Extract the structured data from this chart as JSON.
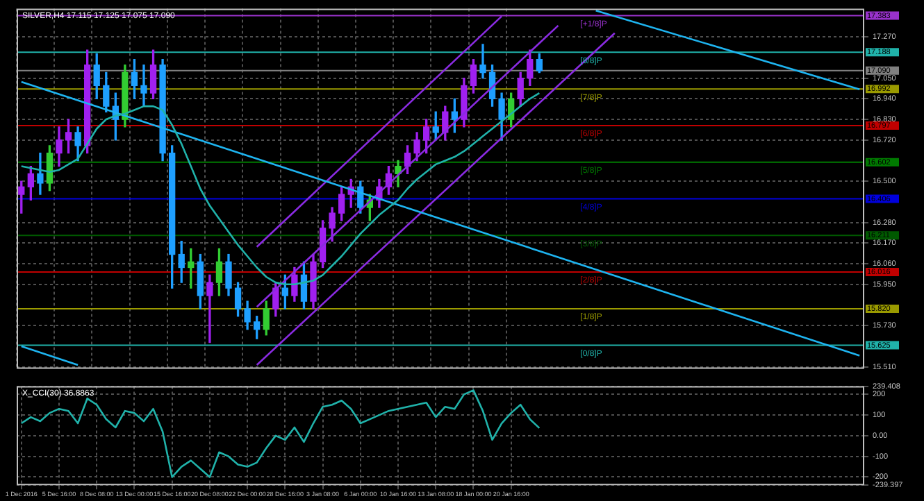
{
  "chart_data": [
    {
      "type": "candlestick",
      "title": "SILVER,H4 17.115 17.125 17.075 17.090",
      "categories": [
        null,
        null,
        null,
        null,
        null,
        null,
        null,
        null,
        null,
        null,
        null,
        null,
        null,
        null,
        null,
        null,
        null,
        null,
        null,
        null,
        null,
        null,
        null,
        null,
        null,
        null,
        null,
        null,
        null,
        null,
        null,
        null,
        null,
        null,
        null,
        null,
        null,
        null,
        null,
        null,
        null,
        null,
        null,
        null,
        null,
        null,
        null,
        null,
        null,
        null,
        null,
        null,
        null,
        null,
        null,
        null,
        null,
        null,
        null,
        null,
        null,
        null,
        null,
        null,
        null,
        null,
        null,
        null,
        null,
        null,
        null,
        null,
        null,
        null,
        null,
        null,
        null,
        null,
        null,
        null,
        null,
        null,
        null,
        null,
        null,
        null,
        null,
        null,
        null,
        null
      ],
      "ohlc": [
        [
          16.43,
          16.5,
          16.33,
          16.47
        ],
        [
          16.47,
          16.58,
          16.4,
          16.54
        ],
        [
          16.54,
          16.65,
          16.43,
          16.49
        ],
        [
          16.49,
          16.69,
          16.45,
          16.65
        ],
        [
          16.65,
          16.79,
          16.58,
          16.72
        ],
        [
          16.72,
          16.83,
          16.65,
          16.76
        ],
        [
          16.76,
          16.79,
          16.61,
          16.69
        ],
        [
          16.69,
          17.2,
          16.65,
          17.12
        ],
        [
          17.12,
          17.18,
          16.94,
          17.01
        ],
        [
          17.01,
          17.08,
          16.87,
          16.9
        ],
        [
          16.9,
          16.97,
          16.72,
          16.83
        ],
        [
          16.83,
          17.12,
          16.79,
          17.08
        ],
        [
          17.08,
          17.15,
          16.94,
          17.01
        ],
        [
          17.01,
          17.12,
          16.9,
          16.97
        ],
        [
          16.97,
          17.2,
          16.94,
          17.12
        ],
        [
          17.12,
          17.15,
          16.61,
          16.65
        ],
        [
          16.65,
          16.69,
          15.93,
          16.11
        ],
        [
          16.11,
          16.18,
          15.96,
          16.04
        ],
        [
          16.04,
          16.14,
          15.93,
          16.07
        ],
        [
          16.07,
          16.11,
          15.82,
          15.89
        ],
        [
          15.89,
          16.0,
          15.64,
          15.96
        ],
        [
          15.96,
          16.14,
          15.89,
          16.07
        ],
        [
          16.07,
          16.11,
          15.89,
          15.93
        ],
        [
          15.93,
          15.96,
          15.78,
          15.82
        ],
        [
          15.82,
          15.86,
          15.71,
          15.75
        ],
        [
          15.75,
          15.78,
          15.66,
          15.71
        ],
        [
          15.71,
          15.86,
          15.68,
          15.82
        ],
        [
          15.82,
          15.96,
          15.78,
          15.93
        ],
        [
          15.93,
          16.0,
          15.82,
          15.89
        ],
        [
          15.89,
          16.04,
          15.86,
          16.0
        ],
        [
          16.0,
          16.07,
          15.82,
          15.86
        ],
        [
          15.86,
          16.11,
          15.82,
          16.07
        ],
        [
          16.07,
          16.29,
          16.04,
          16.25
        ],
        [
          16.25,
          16.36,
          16.18,
          16.33
        ],
        [
          16.33,
          16.47,
          16.29,
          16.43
        ],
        [
          16.43,
          16.51,
          16.36,
          16.47
        ],
        [
          16.47,
          16.5,
          16.33,
          16.36
        ],
        [
          16.36,
          16.43,
          16.29,
          16.4
        ],
        [
          16.4,
          16.51,
          16.36,
          16.47
        ],
        [
          16.47,
          16.58,
          16.43,
          16.54
        ],
        [
          16.54,
          16.61,
          16.47,
          16.58
        ],
        [
          16.58,
          16.69,
          16.54,
          16.65
        ],
        [
          16.65,
          16.76,
          16.61,
          16.72
        ],
        [
          16.72,
          16.83,
          16.65,
          16.79
        ],
        [
          16.79,
          16.87,
          16.72,
          16.76
        ],
        [
          16.76,
          16.9,
          16.72,
          16.87
        ],
        [
          16.87,
          16.94,
          16.76,
          16.83
        ],
        [
          16.83,
          17.05,
          16.79,
          17.01
        ],
        [
          17.01,
          17.15,
          16.97,
          17.12
        ],
        [
          17.12,
          17.23,
          17.05,
          17.08
        ],
        [
          17.08,
          17.12,
          16.9,
          16.94
        ],
        [
          16.94,
          16.97,
          16.72,
          16.83
        ],
        [
          16.83,
          16.97,
          16.79,
          16.94
        ],
        [
          16.94,
          17.08,
          16.9,
          17.05
        ],
        [
          17.05,
          17.2,
          17.01,
          17.15
        ],
        [
          17.15,
          17.18,
          17.08,
          17.09
        ],
        null,
        null,
        null,
        null,
        null,
        null,
        null,
        null,
        null,
        null,
        null,
        null,
        null,
        null,
        null,
        null,
        null,
        null,
        null,
        null,
        null,
        null,
        null,
        null,
        null,
        null,
        null,
        null,
        null,
        null,
        null,
        null,
        null,
        null
      ],
      "colors": [
        "#a020f0",
        "#a020f0",
        "#1e9fff",
        "#32cd32",
        "#a020f0",
        "#a020f0",
        "#1e9fff",
        "#a020f0",
        "#1e9fff",
        "#1e9fff",
        "#1e9fff",
        "#32cd32",
        "#1e9fff",
        "#1e9fff",
        "#a020f0",
        "#1e9fff",
        "#1e9fff",
        "#1e9fff",
        "#32cd32",
        "#1e9fff",
        "#a020f0",
        "#32cd32",
        "#1e9fff",
        "#1e9fff",
        "#1e9fff",
        "#1e9fff",
        "#32cd32",
        "#a020f0",
        "#1e9fff",
        "#a020f0",
        "#1e9fff",
        "#a020f0",
        "#a020f0",
        "#a020f0",
        "#a020f0",
        "#a020f0",
        "#1e9fff",
        "#32cd32",
        "#a020f0",
        "#a020f0",
        "#32cd32",
        "#a020f0",
        "#a020f0",
        "#a020f0",
        "#1e9fff",
        "#a020f0",
        "#1e9fff",
        "#a020f0",
        "#a020f0",
        "#1e9fff",
        "#1e9fff",
        "#1e9fff",
        "#32cd32",
        "#a020f0",
        "#a020f0",
        "#1e9fff",
        null,
        null,
        null,
        null,
        null,
        null,
        null,
        null,
        null,
        null,
        null,
        null,
        null,
        null,
        null,
        null,
        null,
        null,
        null,
        null,
        null,
        null,
        null,
        null,
        null,
        null,
        null,
        null,
        null,
        null,
        null,
        null,
        null,
        null
      ],
      "series": [
        {
          "type": "line",
          "color": "#20b2aa",
          "values": [
            16.58,
            16.57,
            16.56,
            16.55,
            16.56,
            16.59,
            16.62,
            16.7,
            16.78,
            16.83,
            16.85,
            16.86,
            16.88,
            16.9,
            16.9,
            16.88,
            16.8,
            16.7,
            16.58,
            16.46,
            16.37,
            16.3,
            16.23,
            16.16,
            16.1,
            16.04,
            15.99,
            15.96,
            15.95,
            15.95,
            15.96,
            15.97,
            16.0,
            16.05,
            16.1,
            16.16,
            16.22,
            16.27,
            16.32,
            16.36,
            16.4,
            16.46,
            16.51,
            16.55,
            16.59,
            16.61,
            16.63,
            16.66,
            16.7,
            16.74,
            16.78,
            16.82,
            16.86,
            16.9,
            16.94,
            16.97,
            null,
            null,
            null,
            null,
            null,
            null,
            null,
            null,
            null,
            null,
            null,
            null,
            null,
            null,
            null,
            null,
            null,
            null,
            null,
            null,
            null,
            null,
            null,
            null,
            null,
            null,
            null,
            null,
            null,
            null,
            null,
            null,
            null,
            null
          ]
        },
        {
          "type": "line",
          "color": "#1eb4f0",
          "values": [
            17.03,
            null,
            null,
            null,
            null,
            null,
            null,
            null,
            null,
            null,
            null,
            null,
            null,
            null,
            null,
            null,
            null,
            null,
            null,
            null,
            null,
            null,
            null,
            null,
            null,
            null,
            null,
            null,
            null,
            null,
            null,
            null,
            null,
            null,
            null,
            null,
            null,
            null,
            null,
            null,
            null,
            null,
            null,
            null,
            null,
            null,
            null,
            null,
            null,
            null,
            null,
            null,
            null,
            null,
            null,
            null,
            null,
            null,
            null,
            null,
            null,
            null,
            null,
            null,
            null,
            null,
            null,
            null,
            null,
            null,
            null,
            null,
            null,
            null,
            null,
            null,
            null,
            null,
            null,
            null,
            null,
            null,
            null,
            null,
            null,
            null,
            null,
            null,
            null,
            15.57
          ]
        },
        {
          "type": "line",
          "color": "#1eb4f0",
          "values": [
            null,
            null,
            null,
            null,
            null,
            null,
            null,
            null,
            null,
            null,
            null,
            null,
            null,
            null,
            null,
            null,
            null,
            null,
            null,
            null,
            null,
            null,
            null,
            null,
            null,
            null,
            null,
            null,
            null,
            null,
            null,
            null,
            null,
            null,
            null,
            null,
            null,
            null,
            null,
            null,
            null,
            null,
            null,
            null,
            null,
            null,
            null,
            null,
            null,
            null,
            null,
            null,
            null,
            null,
            null,
            null,
            null,
            null,
            null,
            null,
            null,
            17.41,
            null,
            null,
            null,
            null,
            null,
            null,
            null,
            null,
            null,
            null,
            null,
            null,
            null,
            null,
            null,
            null,
            null,
            null,
            null,
            null,
            null,
            null,
            null,
            null,
            null,
            null,
            null,
            16.99
          ]
        },
        {
          "type": "line",
          "color": "#1eb4f0",
          "values": [
            15.62,
            null,
            null,
            null,
            null,
            null,
            15.52,
            null,
            null,
            null,
            null,
            null,
            null,
            null,
            null,
            null,
            null,
            null,
            null,
            null,
            null,
            null,
            null,
            null,
            null,
            null,
            null,
            null,
            null,
            null,
            null,
            null,
            null,
            null,
            null,
            null,
            null,
            null,
            null,
            null,
            null,
            null,
            null,
            null,
            null,
            null,
            null,
            null,
            null,
            null,
            null,
            null,
            null,
            null,
            null,
            null,
            null,
            null,
            null,
            null,
            null,
            null,
            null,
            null,
            null,
            null,
            null,
            null,
            null,
            null,
            null,
            null,
            null,
            null,
            null,
            null,
            null,
            null,
            null,
            null,
            null,
            null,
            null,
            null,
            null,
            null,
            null,
            null,
            null,
            null
          ]
        },
        {
          "type": "line",
          "color": "#8a2be2",
          "values": [
            null,
            null,
            null,
            null,
            null,
            null,
            null,
            null,
            null,
            null,
            null,
            null,
            null,
            null,
            null,
            null,
            null,
            null,
            null,
            null,
            null,
            null,
            null,
            null,
            null,
            16.15,
            null,
            null,
            null,
            null,
            null,
            null,
            null,
            null,
            null,
            null,
            null,
            null,
            null,
            null,
            null,
            null,
            null,
            null,
            null,
            null,
            null,
            null,
            null,
            null,
            null,
            17.38,
            null,
            null,
            null,
            null,
            null,
            null,
            null,
            null,
            null,
            null,
            null,
            null,
            null,
            null,
            null,
            null,
            null,
            null,
            null,
            null,
            null,
            null,
            null,
            null,
            null,
            null,
            null,
            null,
            null,
            null,
            null,
            null,
            null,
            null,
            null,
            null,
            null,
            null
          ]
        },
        {
          "type": "line",
          "color": "#8a2be2",
          "values": [
            null,
            null,
            null,
            null,
            null,
            null,
            null,
            null,
            null,
            null,
            null,
            null,
            null,
            null,
            null,
            null,
            null,
            null,
            null,
            null,
            null,
            null,
            null,
            null,
            null,
            15.83,
            null,
            null,
            null,
            null,
            null,
            null,
            null,
            null,
            null,
            null,
            null,
            null,
            null,
            null,
            null,
            null,
            null,
            null,
            null,
            null,
            null,
            null,
            null,
            null,
            null,
            null,
            null,
            null,
            null,
            null,
            null,
            17.33,
            null,
            null,
            null,
            null,
            null,
            null,
            null,
            null,
            null,
            null,
            null,
            null,
            null,
            null,
            null,
            null,
            null,
            null,
            null,
            null,
            null,
            null,
            null,
            null,
            null,
            null,
            null,
            null,
            null,
            null,
            null,
            null
          ]
        },
        {
          "type": "line",
          "color": "#8a2be2",
          "values": [
            null,
            null,
            null,
            null,
            null,
            null,
            null,
            null,
            null,
            null,
            null,
            null,
            null,
            null,
            null,
            null,
            null,
            null,
            null,
            null,
            null,
            null,
            null,
            null,
            null,
            15.52,
            null,
            null,
            null,
            null,
            null,
            null,
            null,
            null,
            null,
            null,
            null,
            null,
            null,
            null,
            null,
            null,
            null,
            null,
            null,
            null,
            null,
            null,
            null,
            null,
            null,
            null,
            null,
            null,
            null,
            null,
            null,
            null,
            null,
            null,
            null,
            null,
            null,
            17.29,
            null,
            null,
            null,
            null,
            null,
            null,
            null,
            null,
            null,
            null,
            null,
            null,
            null,
            null,
            null,
            null,
            null,
            null,
            null,
            null,
            null,
            null,
            null,
            null,
            null,
            null
          ]
        }
      ],
      "ref_lines": [
        {
          "axis": "y",
          "value": 17.383,
          "label": "17.383",
          "color": "#9932cc"
        },
        {
          "axis": "y",
          "value": 17.188,
          "label": "17.188",
          "color": "#20b2aa"
        },
        {
          "axis": "y",
          "value": 17.09,
          "label": "17.090",
          "color": "#808080"
        },
        {
          "axis": "y",
          "value": 16.992,
          "label": "16.992",
          "color": "#9a9a00"
        },
        {
          "axis": "y",
          "value": 16.797,
          "label": "16.797",
          "color": "#c00000"
        },
        {
          "axis": "y",
          "value": 16.602,
          "label": "16.602",
          "color": "#007a00"
        },
        {
          "axis": "y",
          "value": 16.406,
          "label": "16.406",
          "color": "#0000dd"
        },
        {
          "axis": "y",
          "value": 16.211,
          "label": "16.211",
          "color": "#005a00"
        },
        {
          "axis": "y",
          "value": 16.016,
          "label": "16.016",
          "color": "#c00000"
        },
        {
          "axis": "y",
          "value": 15.82,
          "label": "15.820",
          "color": "#9a9a00"
        },
        {
          "axis": "y",
          "value": 15.625,
          "label": "15.625",
          "color": "#20b2aa"
        }
      ],
      "annotations": [
        {
          "text": "[+1/8]P",
          "y": 17.383
        },
        {
          "text": "[8/8]P",
          "y": 17.188
        },
        {
          "text": "[7/8]P",
          "y": 16.992
        },
        {
          "text": "[6/8]P",
          "y": 16.797
        },
        {
          "text": "[5/8]P",
          "y": 16.602
        },
        {
          "text": "[4/8]P",
          "y": 16.406
        },
        {
          "text": "[3/8]P",
          "y": 16.211
        },
        {
          "text": "[2/8]P",
          "y": 16.016
        },
        {
          "text": "[1/8]P",
          "y": 15.82
        },
        {
          "text": "[0/8]P",
          "y": 15.625
        }
      ],
      "ylim": [
        15.5,
        17.42
      ],
      "yticks": [
        {
          "value": 15.51,
          "label": "15.510"
        },
        {
          "value": 15.73,
          "label": "15.730"
        },
        {
          "value": 15.95,
          "label": "15.950"
        },
        {
          "value": 16.06,
          "label": "16.060"
        },
        {
          "value": 16.17,
          "label": "16.170"
        },
        {
          "value": 16.28,
          "label": "16.280"
        },
        {
          "value": 16.5,
          "label": "16.500"
        },
        {
          "value": 16.72,
          "label": "16.720"
        },
        {
          "value": 16.83,
          "label": "16.830"
        },
        {
          "value": 16.94,
          "label": "16.940"
        },
        {
          "value": 17.05,
          "label": "17.050"
        },
        {
          "value": 17.27,
          "label": "17.270"
        }
      ],
      "grid": true,
      "tick_labels": "y"
    },
    {
      "type": "line",
      "title": "X_CCI(30) 36.8863",
      "categories": [
        "1 Dec 2016",
        null,
        null,
        null,
        "5 Dec 16:00",
        null,
        null,
        null,
        "8 Dec 08:00",
        null,
        null,
        null,
        "13 Dec 00:00",
        null,
        null,
        null,
        "15 Dec 16:00",
        null,
        null,
        null,
        "20 Dec 08:00",
        null,
        null,
        null,
        "22 Dec 00:00",
        null,
        null,
        null,
        "28 Dec 16:00",
        null,
        null,
        null,
        "3 Jan 08:00",
        null,
        null,
        null,
        "6 Jan 00:00",
        null,
        null,
        null,
        "10 Jan 16:00",
        null,
        null,
        null,
        "13 Jan 08:00",
        null,
        null,
        null,
        "18 Jan 00:00",
        null,
        null,
        null,
        "20 Jan 16:00",
        null,
        null,
        null,
        null,
        null,
        null,
        null,
        null,
        null,
        null,
        null,
        null,
        null,
        null,
        null,
        null,
        null,
        null,
        null,
        null,
        null,
        null,
        null,
        null,
        null,
        null,
        null,
        null,
        null,
        null,
        null,
        null,
        null,
        null,
        null,
        null,
        null
      ],
      "series": [
        {
          "color": "#20b2aa",
          "values": [
            60,
            90,
            70,
            110,
            130,
            120,
            60,
            180,
            150,
            80,
            40,
            120,
            110,
            70,
            130,
            20,
            -200,
            -150,
            -120,
            -160,
            -200,
            -80,
            -100,
            -140,
            -150,
            -130,
            -60,
            0,
            -20,
            40,
            -30,
            60,
            140,
            150,
            170,
            130,
            60,
            80,
            100,
            120,
            130,
            140,
            150,
            160,
            90,
            140,
            130,
            200,
            220,
            120,
            -20,
            60,
            110,
            150,
            80,
            37,
            null,
            null,
            null,
            null,
            null,
            null,
            null,
            null,
            null,
            null,
            null,
            null,
            null,
            null,
            null,
            null,
            null,
            null,
            null,
            null,
            null,
            null,
            null,
            null,
            null,
            null,
            null,
            null,
            null,
            null,
            null,
            null,
            null,
            null
          ]
        }
      ],
      "ylim": [
        -239.397,
        239.408
      ],
      "yticks": [
        {
          "value": 239.408,
          "label": "239.408"
        },
        200,
        100,
        {
          "value": 0,
          "label": "0.00"
        },
        -100,
        -200,
        {
          "value": -239.397,
          "label": "-239.397"
        }
      ],
      "grid": true
    }
  ]
}
